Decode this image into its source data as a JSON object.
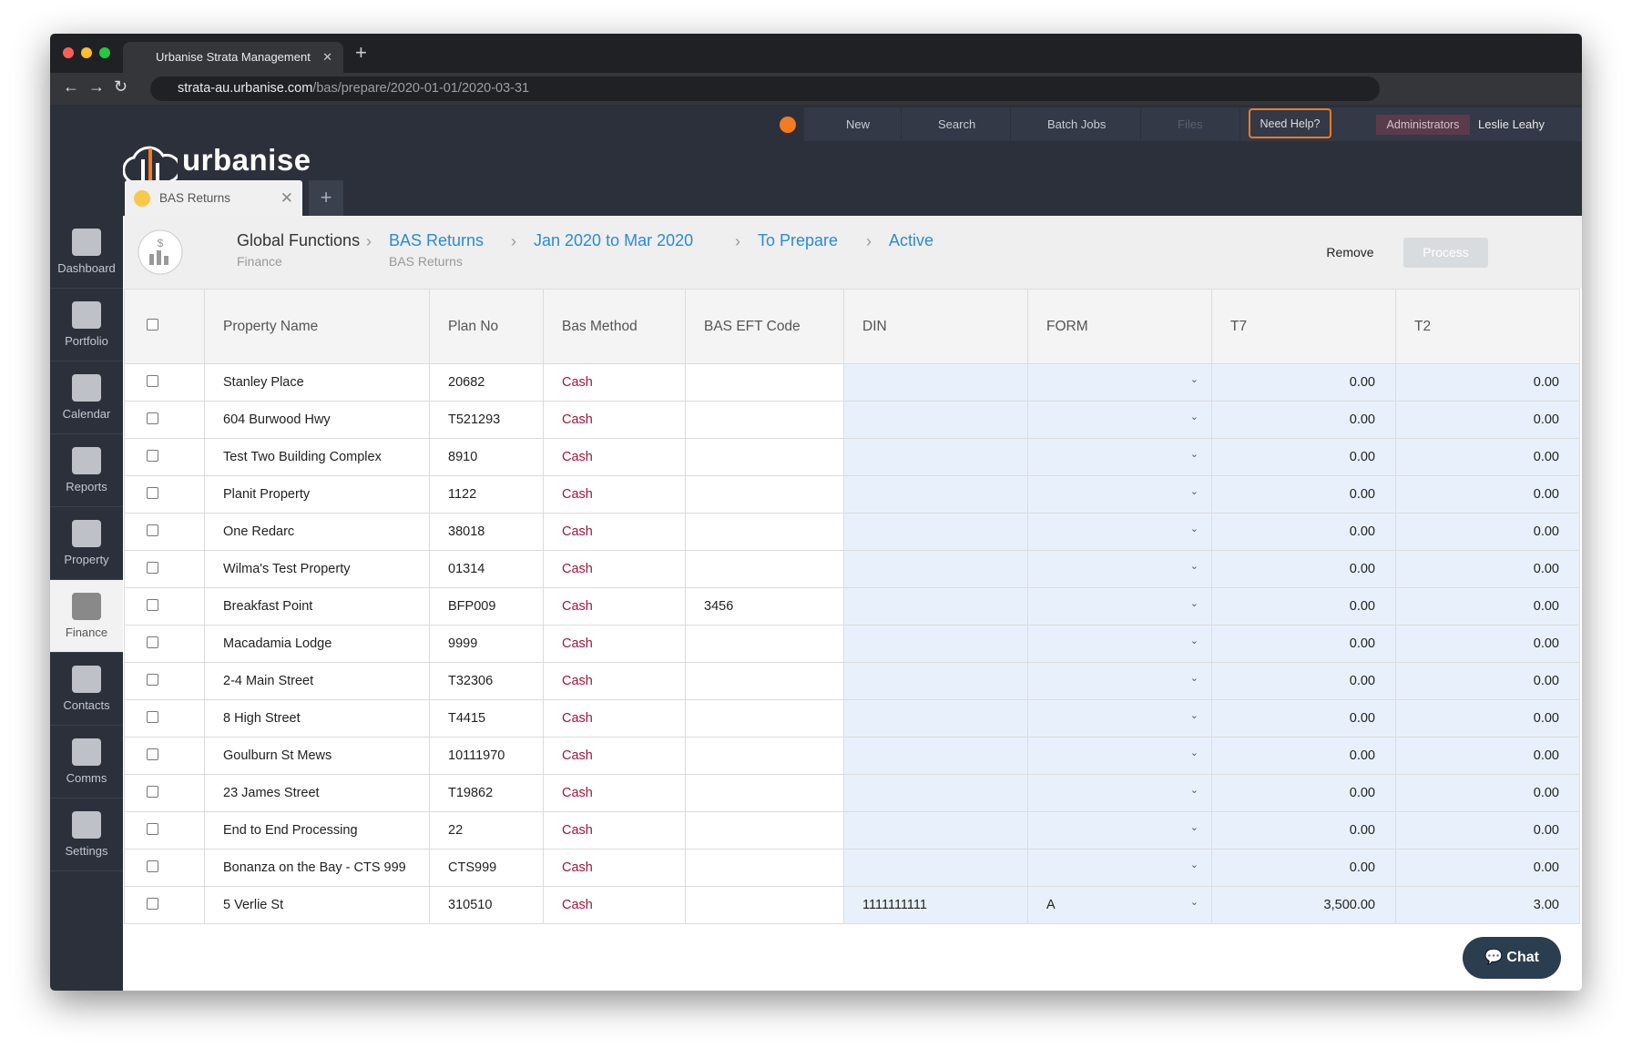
{
  "browser": {
    "tab_title": "Urbanise Strata Management",
    "url_host": "strata-au.urbanise.com",
    "url_path": "/bas/prepare/2020-01-01/2020-03-31"
  },
  "header": {
    "logo": "urbanise",
    "toolbar": [
      "New",
      "Search",
      "Batch Jobs",
      "Files"
    ],
    "help": "Need Help?",
    "role": "Administrators",
    "user": "Leslie Leahy",
    "tab": "BAS Returns"
  },
  "sidebar": [
    "Dashboard",
    "Portfolio",
    "Calendar",
    "Reports",
    "Property",
    "Finance",
    "Contacts",
    "Comms",
    "Settings"
  ],
  "breadcrumb": [
    {
      "title": "Global Functions",
      "subtitle": "Finance"
    },
    {
      "title": "BAS Returns",
      "subtitle": "BAS Returns"
    },
    {
      "title": "Jan 2020 to Mar 2020"
    },
    {
      "title": "To Prepare"
    },
    {
      "title": "Active"
    }
  ],
  "actions": [
    "Remove",
    "Process"
  ],
  "table": {
    "columns": [
      "Property Name",
      "Plan No",
      "Bas Method",
      "BAS EFT Code",
      "DIN",
      "FORM",
      "T7",
      "T2"
    ],
    "rows": [
      [
        "Stanley Place",
        "20682",
        "Cash",
        "",
        "",
        "",
        "0.00",
        "0.00"
      ],
      [
        "604 Burwood Hwy",
        "T521293",
        "Cash",
        "",
        "",
        "",
        "0.00",
        "0.00"
      ],
      [
        "Test Two Building Complex",
        "8910",
        "Cash",
        "",
        "",
        "",
        "0.00",
        "0.00"
      ],
      [
        "Planit Property",
        "1122",
        "Cash",
        "",
        "",
        "",
        "0.00",
        "0.00"
      ],
      [
        "One Redarc",
        "38018",
        "Cash",
        "",
        "",
        "",
        "0.00",
        "0.00"
      ],
      [
        "Wilma's Test Property",
        "01314",
        "Cash",
        "",
        "",
        "",
        "0.00",
        "0.00"
      ],
      [
        "Breakfast Point",
        "BFP009",
        "Cash",
        "3456",
        "",
        "",
        "0.00",
        "0.00"
      ],
      [
        "Macadamia Lodge",
        "9999",
        "Cash",
        "",
        "",
        "",
        "0.00",
        "0.00"
      ],
      [
        "2-4 Main Street",
        "T32306",
        "Cash",
        "",
        "",
        "",
        "0.00",
        "0.00"
      ],
      [
        "8 High Street",
        "T4415",
        "Cash",
        "",
        "",
        "",
        "0.00",
        "0.00"
      ],
      [
        "Goulburn St Mews",
        "10111970",
        "Cash",
        "",
        "",
        "",
        "0.00",
        "0.00"
      ],
      [
        "23 James Street",
        "T19862",
        "Cash",
        "",
        "",
        "",
        "0.00",
        "0.00"
      ],
      [
        "End to End Processing",
        "22",
        "Cash",
        "",
        "",
        "",
        "0.00",
        "0.00"
      ],
      [
        "Bonanza on the Bay - CTS 999",
        "CTS999",
        "Cash",
        "",
        "",
        "",
        "0.00",
        "0.00"
      ],
      [
        "5 Verlie St",
        "310510",
        "Cash",
        "",
        "1111111111",
        "A",
        "3,500.00",
        "3.00"
      ]
    ]
  },
  "chat": "Chat"
}
